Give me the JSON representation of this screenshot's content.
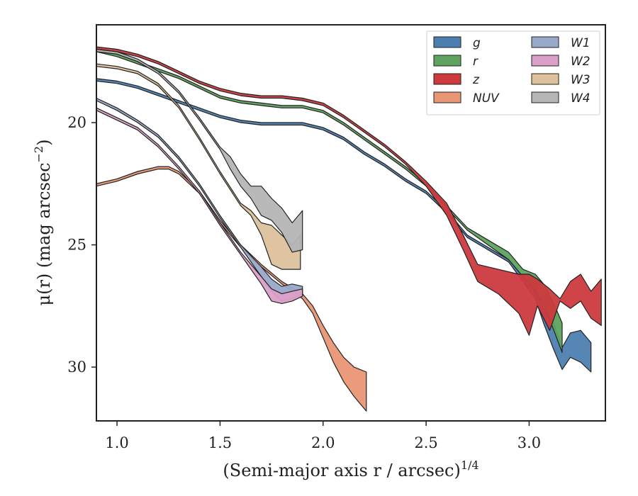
{
  "chart_data": {
    "type": "area",
    "xlabel": "(Semi-major axis r / arcsec)",
    "xlabel_sup": "1/4",
    "ylabel_pre": "μ(r) (mag arcsec",
    "ylabel_sup": "−2",
    "ylabel_post": ")",
    "xlim": [
      0.9,
      3.37
    ],
    "ylim": [
      32.2,
      16.0
    ],
    "y_inverted": true,
    "xticks": [
      1.0,
      1.5,
      2.0,
      2.5,
      3.0
    ],
    "xtick_labels": [
      "1.0",
      "1.5",
      "2.0",
      "2.5",
      "3.0"
    ],
    "yticks": [
      20,
      25,
      30
    ],
    "ytick_labels": [
      "20",
      "25",
      "30"
    ],
    "grid": false,
    "legend_placement": "top-right",
    "legend_columns": 2,
    "series": [
      {
        "name": "g",
        "color": "#4c7fb0",
        "x": [
          0.9,
          1.0,
          1.1,
          1.2,
          1.3,
          1.4,
          1.5,
          1.6,
          1.7,
          1.8,
          1.9,
          2.0,
          2.1,
          2.2,
          2.3,
          2.4,
          2.5,
          2.6,
          2.7,
          2.8,
          2.9,
          2.97,
          3.03,
          3.07,
          3.12,
          3.16,
          3.2,
          3.25,
          3.3
        ],
        "lo": [
          18.2,
          18.3,
          18.5,
          18.8,
          19.1,
          19.4,
          19.7,
          19.9,
          20.0,
          20.0,
          20.0,
          20.2,
          20.6,
          21.2,
          21.7,
          22.3,
          22.8,
          23.6,
          24.6,
          25.1,
          25.6,
          26.3,
          26.8,
          27.6,
          28.2,
          29.2,
          28.6,
          28.5,
          29.0
        ],
        "hi": [
          18.3,
          18.4,
          18.6,
          18.9,
          19.2,
          19.5,
          19.8,
          20.0,
          20.1,
          20.1,
          20.1,
          20.3,
          20.7,
          21.3,
          21.8,
          22.4,
          22.9,
          23.7,
          24.7,
          25.2,
          25.7,
          26.5,
          27.2,
          28.2,
          29.3,
          30.1,
          29.6,
          29.8,
          30.2
        ]
      },
      {
        "name": "r",
        "color": "#5ea35e",
        "x": [
          0.9,
          1.0,
          1.1,
          1.2,
          1.3,
          1.4,
          1.5,
          1.6,
          1.7,
          1.8,
          1.9,
          2.0,
          2.1,
          2.2,
          2.3,
          2.4,
          2.5,
          2.6,
          2.7,
          2.8,
          2.9,
          2.97,
          3.03,
          3.07,
          3.12,
          3.16
        ],
        "lo": [
          17.0,
          17.2,
          17.5,
          17.8,
          18.1,
          18.5,
          18.9,
          19.1,
          19.2,
          19.3,
          19.3,
          19.5,
          20.0,
          20.6,
          21.2,
          21.8,
          22.5,
          23.4,
          24.3,
          24.8,
          25.3,
          26.0,
          26.2,
          26.6,
          27.4,
          28.2
        ],
        "hi": [
          17.1,
          17.3,
          17.6,
          17.9,
          18.2,
          18.6,
          19.0,
          19.2,
          19.3,
          19.4,
          19.4,
          19.6,
          20.1,
          20.7,
          21.3,
          21.9,
          22.6,
          23.5,
          24.4,
          25.0,
          25.6,
          26.3,
          26.9,
          27.4,
          28.5,
          29.4
        ]
      },
      {
        "name": "z",
        "color": "#cc3a3e",
        "x": [
          0.9,
          1.0,
          1.1,
          1.2,
          1.3,
          1.4,
          1.5,
          1.6,
          1.7,
          1.8,
          1.9,
          2.0,
          2.1,
          2.2,
          2.3,
          2.4,
          2.5,
          2.6,
          2.68,
          2.75,
          2.85,
          2.95,
          3.0,
          3.04,
          3.1,
          3.15,
          3.2,
          3.25,
          3.3,
          3.35
        ],
        "lo": [
          16.9,
          17.0,
          17.2,
          17.5,
          17.9,
          18.3,
          18.6,
          18.8,
          18.9,
          18.9,
          19.0,
          19.2,
          19.7,
          20.3,
          20.9,
          21.6,
          22.4,
          23.3,
          24.6,
          25.8,
          26.0,
          26.2,
          26.2,
          26.4,
          26.8,
          27.2,
          26.5,
          26.2,
          26.9,
          26.4
        ],
        "hi": [
          17.0,
          17.1,
          17.3,
          17.6,
          18.0,
          18.4,
          18.7,
          18.9,
          19.0,
          19.0,
          19.1,
          19.3,
          19.8,
          20.4,
          21.0,
          21.7,
          22.6,
          23.8,
          25.2,
          26.5,
          27.0,
          27.8,
          28.7,
          27.5,
          28.5,
          27.3,
          27.6,
          27.3,
          28.0,
          28.3
        ]
      },
      {
        "name": "NUV",
        "color": "#e99675",
        "x": [
          0.9,
          1.0,
          1.1,
          1.2,
          1.25,
          1.3,
          1.4,
          1.5,
          1.6,
          1.7,
          1.8,
          1.9,
          1.95,
          2.0,
          2.05,
          2.1,
          2.15,
          2.21
        ],
        "lo": [
          22.5,
          22.3,
          22.0,
          21.8,
          21.8,
          22.0,
          22.8,
          24.0,
          25.0,
          25.8,
          26.5,
          27.0,
          27.5,
          28.3,
          29.0,
          29.6,
          30.0,
          30.2
        ],
        "hi": [
          22.6,
          22.4,
          22.1,
          21.9,
          21.9,
          22.1,
          22.9,
          24.1,
          25.1,
          25.9,
          26.6,
          27.2,
          27.8,
          28.8,
          29.8,
          30.6,
          31.2,
          31.8
        ]
      },
      {
        "name": "W1",
        "color": "#99a9c9",
        "x": [
          0.9,
          1.0,
          1.1,
          1.2,
          1.3,
          1.4,
          1.5,
          1.6,
          1.7,
          1.75,
          1.8,
          1.85,
          1.9
        ],
        "lo": [
          19.0,
          19.4,
          19.9,
          20.5,
          21.4,
          22.5,
          23.8,
          25.0,
          25.9,
          26.4,
          26.7,
          26.6,
          26.7
        ],
        "hi": [
          19.1,
          19.5,
          20.0,
          20.6,
          21.5,
          22.6,
          23.9,
          25.1,
          26.3,
          26.9,
          27.3,
          27.2,
          27.0
        ]
      },
      {
        "name": "W2",
        "color": "#dca0c8",
        "x": [
          0.9,
          1.0,
          1.1,
          1.2,
          1.3,
          1.4,
          1.5,
          1.6,
          1.7,
          1.75,
          1.8,
          1.85,
          1.9
        ],
        "lo": [
          19.4,
          19.8,
          20.2,
          20.9,
          21.8,
          22.8,
          24.1,
          25.3,
          26.3,
          26.8,
          27.0,
          26.9,
          26.8
        ],
        "hi": [
          19.5,
          19.9,
          20.3,
          21.0,
          21.9,
          22.9,
          24.2,
          25.4,
          26.6,
          27.3,
          27.4,
          27.3,
          27.1
        ]
      },
      {
        "name": "W3",
        "color": "#dcc19b",
        "x": [
          0.9,
          1.0,
          1.1,
          1.2,
          1.3,
          1.4,
          1.5,
          1.6,
          1.65,
          1.7,
          1.75,
          1.8,
          1.85,
          1.89
        ],
        "lo": [
          17.6,
          17.7,
          17.9,
          18.4,
          19.3,
          20.6,
          22.0,
          23.3,
          23.6,
          24.1,
          24.2,
          24.6,
          25.0,
          24.6
        ],
        "hi": [
          17.7,
          17.8,
          18.0,
          18.5,
          19.4,
          20.7,
          22.1,
          23.4,
          23.8,
          24.6,
          25.8,
          26.0,
          26.0,
          26.0
        ]
      },
      {
        "name": "W4",
        "color": "#b5b5b5",
        "x": [
          0.9,
          1.0,
          1.1,
          1.2,
          1.3,
          1.4,
          1.5,
          1.55,
          1.6,
          1.65,
          1.7,
          1.75,
          1.8,
          1.85,
          1.9
        ],
        "lo": [
          17.0,
          17.1,
          17.4,
          17.9,
          18.7,
          19.8,
          21.0,
          21.4,
          22.1,
          22.6,
          22.6,
          23.1,
          23.5,
          24.1,
          23.6
        ],
        "hi": [
          17.1,
          17.2,
          17.5,
          18.0,
          18.8,
          19.9,
          21.1,
          21.9,
          22.6,
          23.1,
          23.8,
          24.0,
          24.5,
          25.3,
          25.2
        ]
      }
    ]
  }
}
